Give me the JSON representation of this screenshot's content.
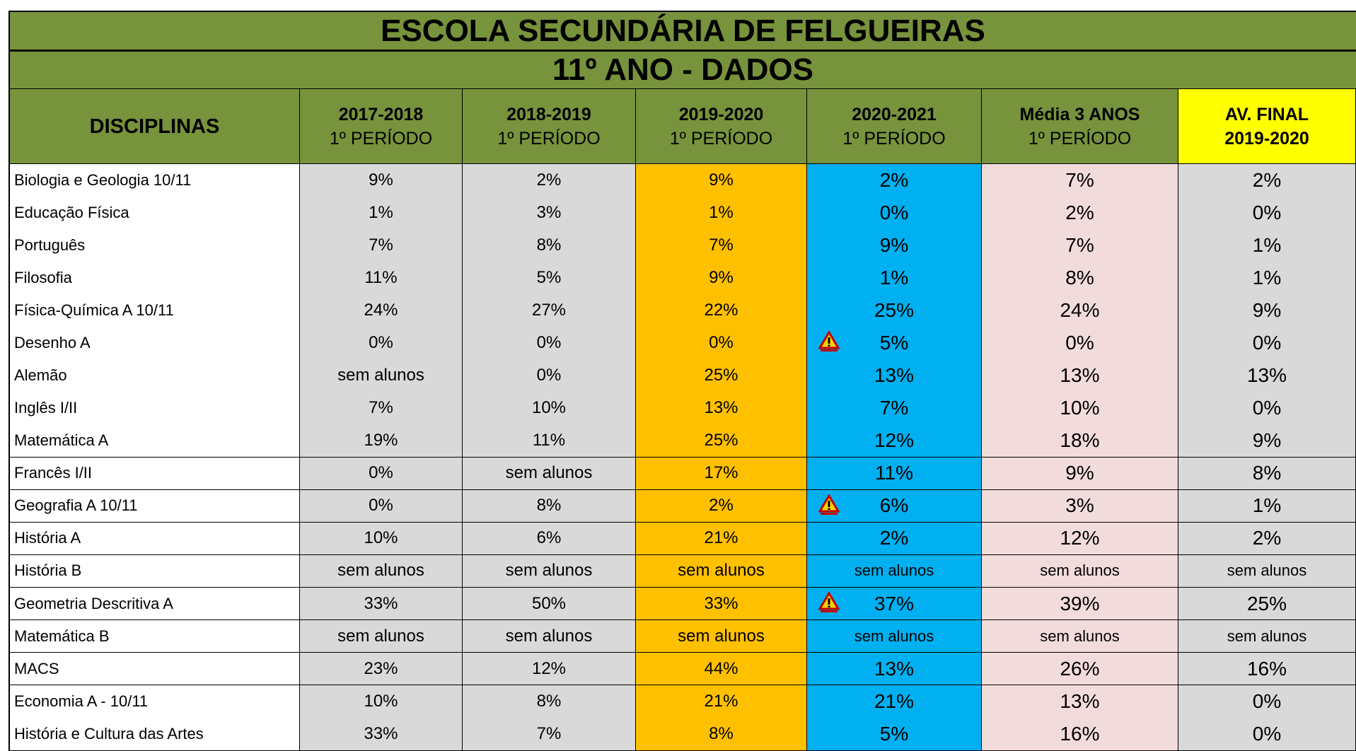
{
  "header": {
    "title": "ESCOLA SECUNDÁRIA DE FELGUEIRAS",
    "subtitle": "11º ANO - DADOS"
  },
  "table": {
    "columns": [
      [
        "DISCIPLINAS"
      ],
      [
        "2017-2018",
        "1º PERÍODO"
      ],
      [
        "2018-2019",
        "1º PERÍODO"
      ],
      [
        "2019-2020",
        "1º PERÍODO"
      ],
      [
        "2020-2021",
        "1º PERÍODO"
      ],
      [
        "Média 3 ANOS",
        "1º PERÍODO"
      ],
      [
        "AV. FINAL",
        "2019-2020"
      ]
    ],
    "rows": [
      [
        "Biologia e Geologia 10/11",
        "9%",
        "2%",
        "9%",
        "2%",
        "7%",
        "2%"
      ],
      [
        "Educação Física",
        "1%",
        "3%",
        "1%",
        "0%",
        "2%",
        "0%"
      ],
      [
        "Português",
        "7%",
        "8%",
        "7%",
        "9%",
        "7%",
        "1%"
      ],
      [
        "Filosofia",
        "11%",
        "5%",
        "9%",
        "1%",
        "8%",
        "1%"
      ],
      [
        "Física-Química A 10/11",
        "24%",
        "27%",
        "22%",
        "25%",
        "24%",
        "9%"
      ],
      [
        "Desenho A",
        "0%",
        "0%",
        "0%",
        "5%",
        "0%",
        "0%"
      ],
      [
        "Alemão",
        "sem alunos",
        "0%",
        "25%",
        "13%",
        "13%",
        "13%"
      ],
      [
        "Inglês I/II",
        "7%",
        "10%",
        "13%",
        "7%",
        "10%",
        "0%"
      ],
      [
        "Matemática A",
        "19%",
        "11%",
        "25%",
        "12%",
        "18%",
        "9%"
      ],
      [
        "Francês I/II",
        "0%",
        "sem alunos",
        "17%",
        "11%",
        "9%",
        "8%"
      ],
      [
        "Geografia A 10/11",
        "0%",
        "8%",
        "2%",
        "6%",
        "3%",
        "1%"
      ],
      [
        "História A",
        "10%",
        "6%",
        "21%",
        "2%",
        "12%",
        "2%"
      ],
      [
        "História B",
        "sem alunos",
        "sem alunos",
        "sem alunos",
        "sem alunos",
        "sem alunos",
        "sem alunos"
      ],
      [
        "Geometria Descritiva A",
        "33%",
        "50%",
        "33%",
        "37%",
        "39%",
        "25%"
      ],
      [
        "Matemática B",
        "sem alunos",
        "sem alunos",
        "sem alunos",
        "sem alunos",
        "sem alunos",
        "sem alunos"
      ],
      [
        "MACS",
        "23%",
        "12%",
        "44%",
        "13%",
        "26%",
        "16%"
      ],
      [
        "Economia A - 10/11",
        "10%",
        "8%",
        "21%",
        "21%",
        "13%",
        "0%"
      ],
      [
        "História e Cultura das Artes",
        "33%",
        "7%",
        "8%",
        "5%",
        "16%",
        "0%"
      ]
    ]
  }
}
